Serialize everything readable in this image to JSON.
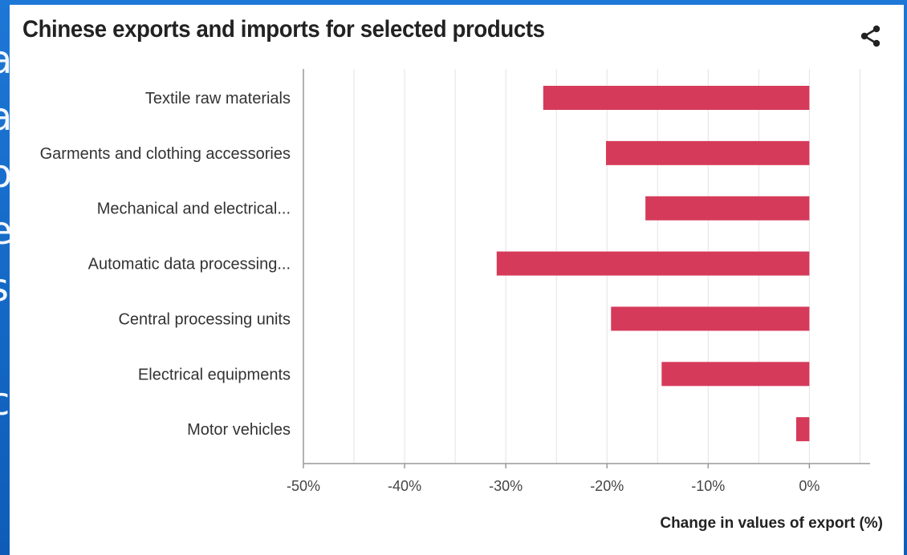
{
  "title": "Chinese exports and imports for selected products",
  "icons": {
    "share": "share-icon"
  },
  "colors": {
    "bar": "#d63a5a",
    "grid": "#e3e3e3",
    "axis": "#999999"
  },
  "chart_data": {
    "type": "bar",
    "orientation": "horizontal",
    "title": "Chinese exports and imports for selected products",
    "categories": [
      "Textile raw materials",
      "Garments and clothing accessories",
      "Mechanical and electrical...",
      "Automatic data processing...",
      "Central processing units",
      "Electrical equipments",
      "Motor vehicles"
    ],
    "values": [
      -26.3,
      -20.1,
      -16.2,
      -30.9,
      -19.6,
      -14.6,
      -1.3
    ],
    "xlabel": "Change in values of export (%)",
    "ylabel": "",
    "xlim": [
      -50,
      6
    ],
    "xticks": [
      -50,
      -40,
      -30,
      -20,
      -10,
      0
    ],
    "xtick_labels": [
      "-50%",
      "-40%",
      "-30%",
      "-20%",
      "-10%",
      "0%"
    ],
    "grid": true
  }
}
